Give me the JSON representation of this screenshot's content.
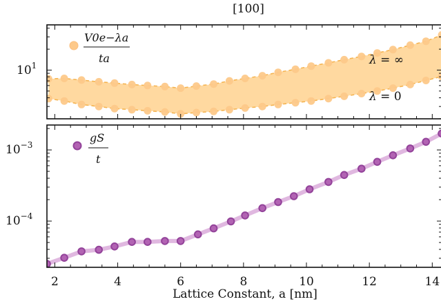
{
  "chart_data": [
    {
      "type": "area",
      "title": "[100]",
      "xlabel": "",
      "ylabel": "",
      "xlim": [
        1.75,
        14.3
      ],
      "ylim_log10": [
        0.3,
        1.65
      ],
      "ytick_labels": [
        {
          "base": "10",
          "exp": "1",
          "value": 10
        }
      ],
      "legend": {
        "position": "top-left",
        "entry_numerator": "V0e−λa",
        "entry_denominator": "ta"
      },
      "annotations": [
        {
          "text_lhs": "λ",
          "text_rhs": "∞",
          "near_series": "upper"
        },
        {
          "text_lhs": "λ",
          "text_rhs": "0",
          "near_series": "lower"
        }
      ],
      "color": "#ffd9a0",
      "point_color": "#fdc98a",
      "line_color": "#f5b451",
      "series": [
        {
          "name": "λ = ∞",
          "points": [
            [
              1.8,
              7.5
            ],
            [
              2.3,
              7.6
            ],
            [
              2.85,
              7.2
            ],
            [
              3.4,
              6.8
            ],
            [
              3.9,
              6.5
            ],
            [
              4.45,
              6.2
            ],
            [
              4.95,
              6.0
            ],
            [
              5.5,
              5.8
            ],
            [
              6.0,
              5.5
            ],
            [
              6.5,
              5.9
            ],
            [
              7.05,
              6.3
            ],
            [
              7.55,
              7.0
            ],
            [
              8.05,
              7.6
            ],
            [
              8.6,
              8.3
            ],
            [
              9.1,
              9.3
            ],
            [
              9.65,
              10.3
            ],
            [
              10.15,
              11.4
            ],
            [
              10.7,
              12.7
            ],
            [
              11.2,
              14.1
            ],
            [
              11.75,
              15.7
            ],
            [
              12.25,
              17.6
            ],
            [
              12.75,
              19.7
            ],
            [
              13.3,
              22.8
            ],
            [
              13.8,
              26.0
            ],
            [
              14.3,
              32.0
            ]
          ]
        },
        {
          "name": "λ = 0",
          "points": [
            [
              1.8,
              3.9
            ],
            [
              2.3,
              3.6
            ],
            [
              2.85,
              3.2
            ],
            [
              3.4,
              3.0
            ],
            [
              3.9,
              2.8
            ],
            [
              4.45,
              2.7
            ],
            [
              4.95,
              2.6
            ],
            [
              5.5,
              2.5
            ],
            [
              6.0,
              2.35
            ],
            [
              6.5,
              2.45
            ],
            [
              7.05,
              2.55
            ],
            [
              7.55,
              2.7
            ],
            [
              8.05,
              2.85
            ],
            [
              8.6,
              3.0
            ],
            [
              9.1,
              3.2
            ],
            [
              9.65,
              3.4
            ],
            [
              10.15,
              3.6
            ],
            [
              10.7,
              3.9
            ],
            [
              11.2,
              4.2
            ],
            [
              11.75,
              4.6
            ],
            [
              12.25,
              5.0
            ],
            [
              12.75,
              5.5
            ],
            [
              13.3,
              6.2
            ],
            [
              13.8,
              7.1
            ],
            [
              14.3,
              8.1
            ]
          ]
        }
      ]
    },
    {
      "type": "line",
      "xlabel": "Lattice Constant, a [nm]",
      "ylabel": "",
      "xlim": [
        1.75,
        14.3
      ],
      "ylim_log10": [
        -4.65,
        -2.65
      ],
      "xtick_labels": [
        "2",
        "4",
        "6",
        "8",
        "10",
        "12",
        "14"
      ],
      "xticks": [
        2,
        4,
        6,
        8,
        10,
        12,
        14
      ],
      "ytick_labels": [
        {
          "base": "10",
          "exp": "−3",
          "value": 0.001
        },
        {
          "base": "10",
          "exp": "−4",
          "value": 0.0001
        }
      ],
      "legend": {
        "position": "top-left",
        "entry_numerator": "gS",
        "entry_denominator": "t"
      },
      "point_color": "#b263b3",
      "line_color": "#e0b8e0",
      "series": [
        {
          "name": "gS/t",
          "points": [
            [
              1.75,
              2.5e-05
            ],
            [
              2.3,
              3.05e-05
            ],
            [
              2.85,
              3.75e-05
            ],
            [
              3.4,
              3.95e-05
            ],
            [
              3.9,
              4.4e-05
            ],
            [
              4.45,
              5.1e-05
            ],
            [
              4.95,
              5.1e-05
            ],
            [
              5.5,
              5.25e-05
            ],
            [
              6.0,
              5.25e-05
            ],
            [
              6.55,
              6.5e-05
            ],
            [
              7.05,
              7.9e-05
            ],
            [
              7.6,
              9.9e-05
            ],
            [
              8.05,
              0.00012
            ],
            [
              8.6,
              0.000152
            ],
            [
              9.1,
              0.000185
            ],
            [
              9.6,
              0.000224
            ],
            [
              10.1,
              0.00028
            ],
            [
              10.7,
              0.000355
            ],
            [
              11.2,
              0.000445
            ],
            [
              11.75,
              0.000545
            ],
            [
              12.25,
              0.00068
            ],
            [
              12.75,
              0.00084
            ],
            [
              13.3,
              0.00105
            ],
            [
              13.8,
              0.0013
            ],
            [
              14.3,
              0.0017
            ]
          ]
        }
      ]
    }
  ]
}
